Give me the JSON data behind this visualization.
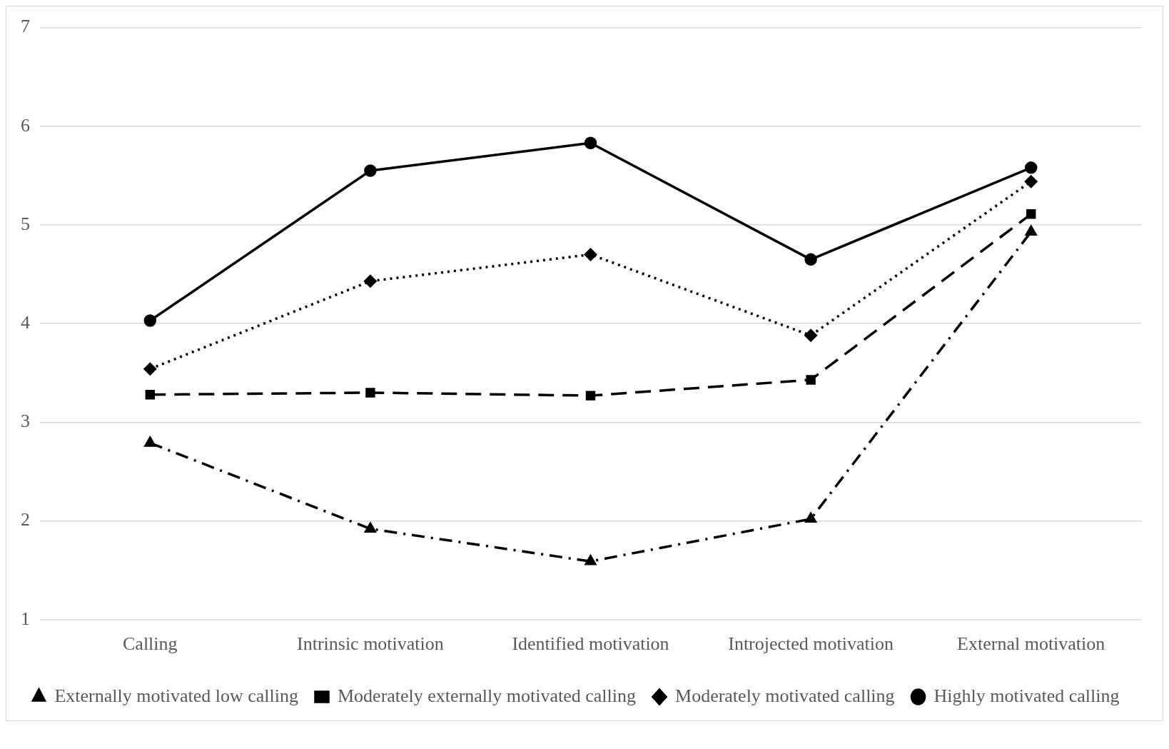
{
  "chart_data": {
    "type": "line",
    "categories": [
      "Calling",
      "Intrinsic motivation",
      "Identified motivation",
      "Introjected motivation",
      "External motivation"
    ],
    "series": [
      {
        "name": "Externally motivated low calling",
        "color": "#000000",
        "marker": "triangle",
        "line_style": "dashdot",
        "values": [
          2.79,
          1.92,
          1.59,
          2.02,
          4.93
        ]
      },
      {
        "name": "Moderately externally motivated calling",
        "color": "#000000",
        "marker": "square",
        "line_style": "dashed",
        "values": [
          3.28,
          3.3,
          3.27,
          3.43,
          5.11
        ]
      },
      {
        "name": "Moderately motivated calling",
        "color": "#000000",
        "marker": "diamond",
        "line_style": "dotted",
        "values": [
          3.54,
          4.43,
          4.7,
          3.88,
          5.44
        ]
      },
      {
        "name": "Highly motivated calling",
        "color": "#000000",
        "marker": "circle",
        "line_style": "solid",
        "values": [
          4.03,
          5.55,
          5.83,
          4.65,
          5.58
        ]
      }
    ],
    "ylim": [
      1,
      7
    ],
    "yticks": [
      1,
      2,
      3,
      4,
      5,
      6,
      7
    ],
    "grid": "y",
    "legend": "bottom"
  }
}
